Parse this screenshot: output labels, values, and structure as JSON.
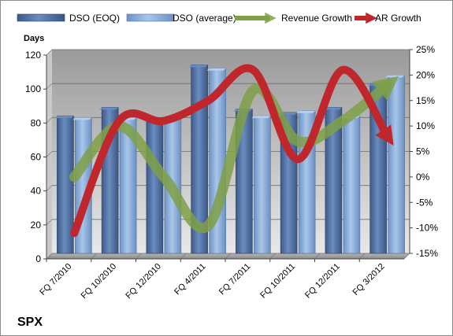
{
  "chart_data": {
    "type": "bar",
    "categories": [
      "FQ 7/2010",
      "FQ 10/2010",
      "FQ 12/2010",
      "FQ 4/2011",
      "FQ 7/2011",
      "FQ 10/2011",
      "FQ 12/2011",
      "FQ 3/2012"
    ],
    "series": [
      {
        "name": "DSO (EOQ)",
        "axis": "left",
        "type": "bar",
        "color": "#4f6fa0",
        "values": [
          81,
          86,
          79,
          111,
          85,
          83,
          86,
          100
        ]
      },
      {
        "name": "DSO (average)",
        "axis": "left",
        "type": "bar",
        "color": "#7ea4d4",
        "values": [
          80,
          80,
          81,
          109,
          81,
          84,
          81,
          105
        ]
      },
      {
        "name": "Revenue Growth",
        "axis": "right",
        "type": "line",
        "color": "#7fa046",
        "values": [
          0.0,
          10.0,
          0.0,
          -9.5,
          17.0,
          7.0,
          11.0,
          18.0
        ]
      },
      {
        "name": "AR Growth",
        "axis": "right",
        "type": "line",
        "color": "#c0272d",
        "values": [
          -11.0,
          11.0,
          11.0,
          15.0,
          21.0,
          3.5,
          21.0,
          8.0
        ]
      }
    ],
    "ylabel": "Days",
    "ylim": [
      0,
      120
    ],
    "yticks": [
      "0",
      "20",
      "40",
      "60",
      "80",
      "100",
      "120"
    ],
    "y2lim": [
      -15,
      25
    ],
    "y2ticks": [
      "-15%",
      "-10%",
      "-5%",
      "0%",
      "5%",
      "10%",
      "15%",
      "20%",
      "25%"
    ],
    "legend_position": "top",
    "grid": true,
    "annotation": "SPX"
  }
}
